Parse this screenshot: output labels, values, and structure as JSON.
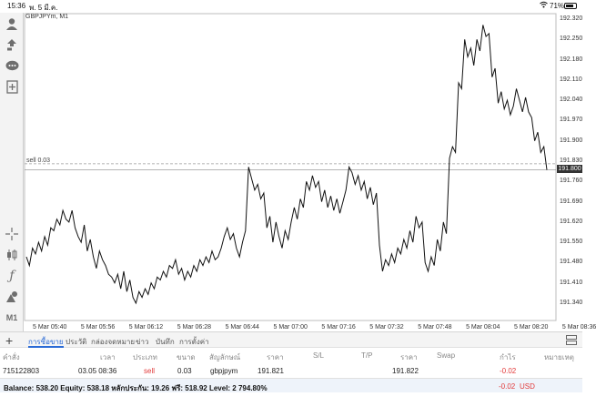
{
  "status_bar": {
    "time": "15:36",
    "date": "พ. 5 มี.ค.",
    "battery_percent": "71%"
  },
  "chart": {
    "title": "GBPJPYm, M1",
    "sell_line_label": "sell 0.03",
    "current_price": "191.800"
  },
  "toolbar": {
    "icons": [
      "account-icon",
      "trade-icon",
      "chat-icon",
      "new-chart-icon",
      "crosshair-icon",
      "candle-icon",
      "function-icon",
      "objects-icon"
    ],
    "timeframe": "M1"
  },
  "chart_data": {
    "type": "line",
    "y_ticks": [
      "192.320",
      "192.250",
      "192.180",
      "192.110",
      "192.040",
      "191.970",
      "191.900",
      "191.830",
      "191.760",
      "191.690",
      "191.620",
      "191.550",
      "191.480",
      "191.410",
      "191.340"
    ],
    "x_ticks": [
      "5 Mar 05:40",
      "5 Mar 05:56",
      "5 Mar 06:12",
      "5 Mar 06:28",
      "5 Mar 06:44",
      "5 Mar 07:00",
      "5 Mar 07:16",
      "5 Mar 07:32",
      "5 Mar 07:48",
      "5 Mar 08:04",
      "5 Mar 08:20",
      "5 Mar 08:36"
    ],
    "ylim": [
      191.3,
      192.34
    ],
    "sell_level": 191.821,
    "current": 191.8,
    "values": [
      191.5,
      191.47,
      191.53,
      191.51,
      191.55,
      191.52,
      191.57,
      191.54,
      191.6,
      191.59,
      191.63,
      191.61,
      191.66,
      191.63,
      191.62,
      191.66,
      191.6,
      191.57,
      191.55,
      191.61,
      191.52,
      191.56,
      191.5,
      191.46,
      191.52,
      191.49,
      191.47,
      191.44,
      191.43,
      191.41,
      191.44,
      191.39,
      191.45,
      191.38,
      191.42,
      191.36,
      191.34,
      191.38,
      191.36,
      191.39,
      191.37,
      191.41,
      191.39,
      191.43,
      191.42,
      191.45,
      191.43,
      191.47,
      191.46,
      191.49,
      191.44,
      191.46,
      191.42,
      191.45,
      191.43,
      191.47,
      191.45,
      191.49,
      191.47,
      191.5,
      191.48,
      191.52,
      191.49,
      191.5,
      191.53,
      191.57,
      191.6,
      191.56,
      191.58,
      191.53,
      191.5,
      191.55,
      191.59,
      191.81,
      191.77,
      191.73,
      191.75,
      191.7,
      191.72,
      191.6,
      191.64,
      191.55,
      191.62,
      191.57,
      191.53,
      191.59,
      191.56,
      191.62,
      191.67,
      191.63,
      191.7,
      191.67,
      191.76,
      191.73,
      191.78,
      191.74,
      191.76,
      191.69,
      191.73,
      191.67,
      191.71,
      191.66,
      191.7,
      191.65,
      191.69,
      191.73,
      191.81,
      191.79,
      191.75,
      191.78,
      191.73,
      191.76,
      191.7,
      191.74,
      191.68,
      191.72,
      191.54,
      191.45,
      191.49,
      191.47,
      191.51,
      191.48,
      191.53,
      191.51,
      191.56,
      191.53,
      191.59,
      191.55,
      191.64,
      191.6,
      191.62,
      191.48,
      191.45,
      191.5,
      191.47,
      191.56,
      191.52,
      191.62,
      191.58,
      191.84,
      191.88,
      191.86,
      192.1,
      192.08,
      192.25,
      192.19,
      192.22,
      192.16,
      192.25,
      192.21,
      192.3,
      192.26,
      192.27,
      192.12,
      192.15,
      192.03,
      192.07,
      192.01,
      192.04,
      191.99,
      192.02,
      192.08,
      192.04,
      192.0,
      192.05,
      192.0,
      191.98,
      191.9,
      191.93,
      191.86,
      191.88,
      191.8
    ]
  },
  "terminal": {
    "tabs": [
      "การซื้อขาย",
      "ประวัติ",
      "กล่องจดหมาย",
      "ข่าว",
      "บันทึก",
      "การตั้งค่า"
    ],
    "columns": [
      "คำสั่ง",
      "เวลา",
      "ประเภท",
      "ขนาด",
      "สัญลักษณ์",
      "ราคา",
      "S/L",
      "T/P",
      "ราคา",
      "Swap",
      "กำไร",
      "หมายเหตุ"
    ],
    "row": {
      "order": "715122803",
      "time": "03.05 08:36",
      "type": "sell",
      "volume": "0.03",
      "symbol": "gbpjpym",
      "open_price": "191.821",
      "sl": "",
      "tp": "",
      "price": "191.822",
      "swap": "",
      "profit": "-0.02",
      "comment": ""
    },
    "balance_text": "Balance: 538.20 Equity: 538.18 หลักประกัน: 19.26 ฟรี: 518.92 Level: 2 794.80%",
    "total_profit": "-0.02",
    "currency": "USD"
  },
  "colors": {
    "accent": "#2c6bd6",
    "loss": "#e23a3a",
    "line": "#111111"
  }
}
